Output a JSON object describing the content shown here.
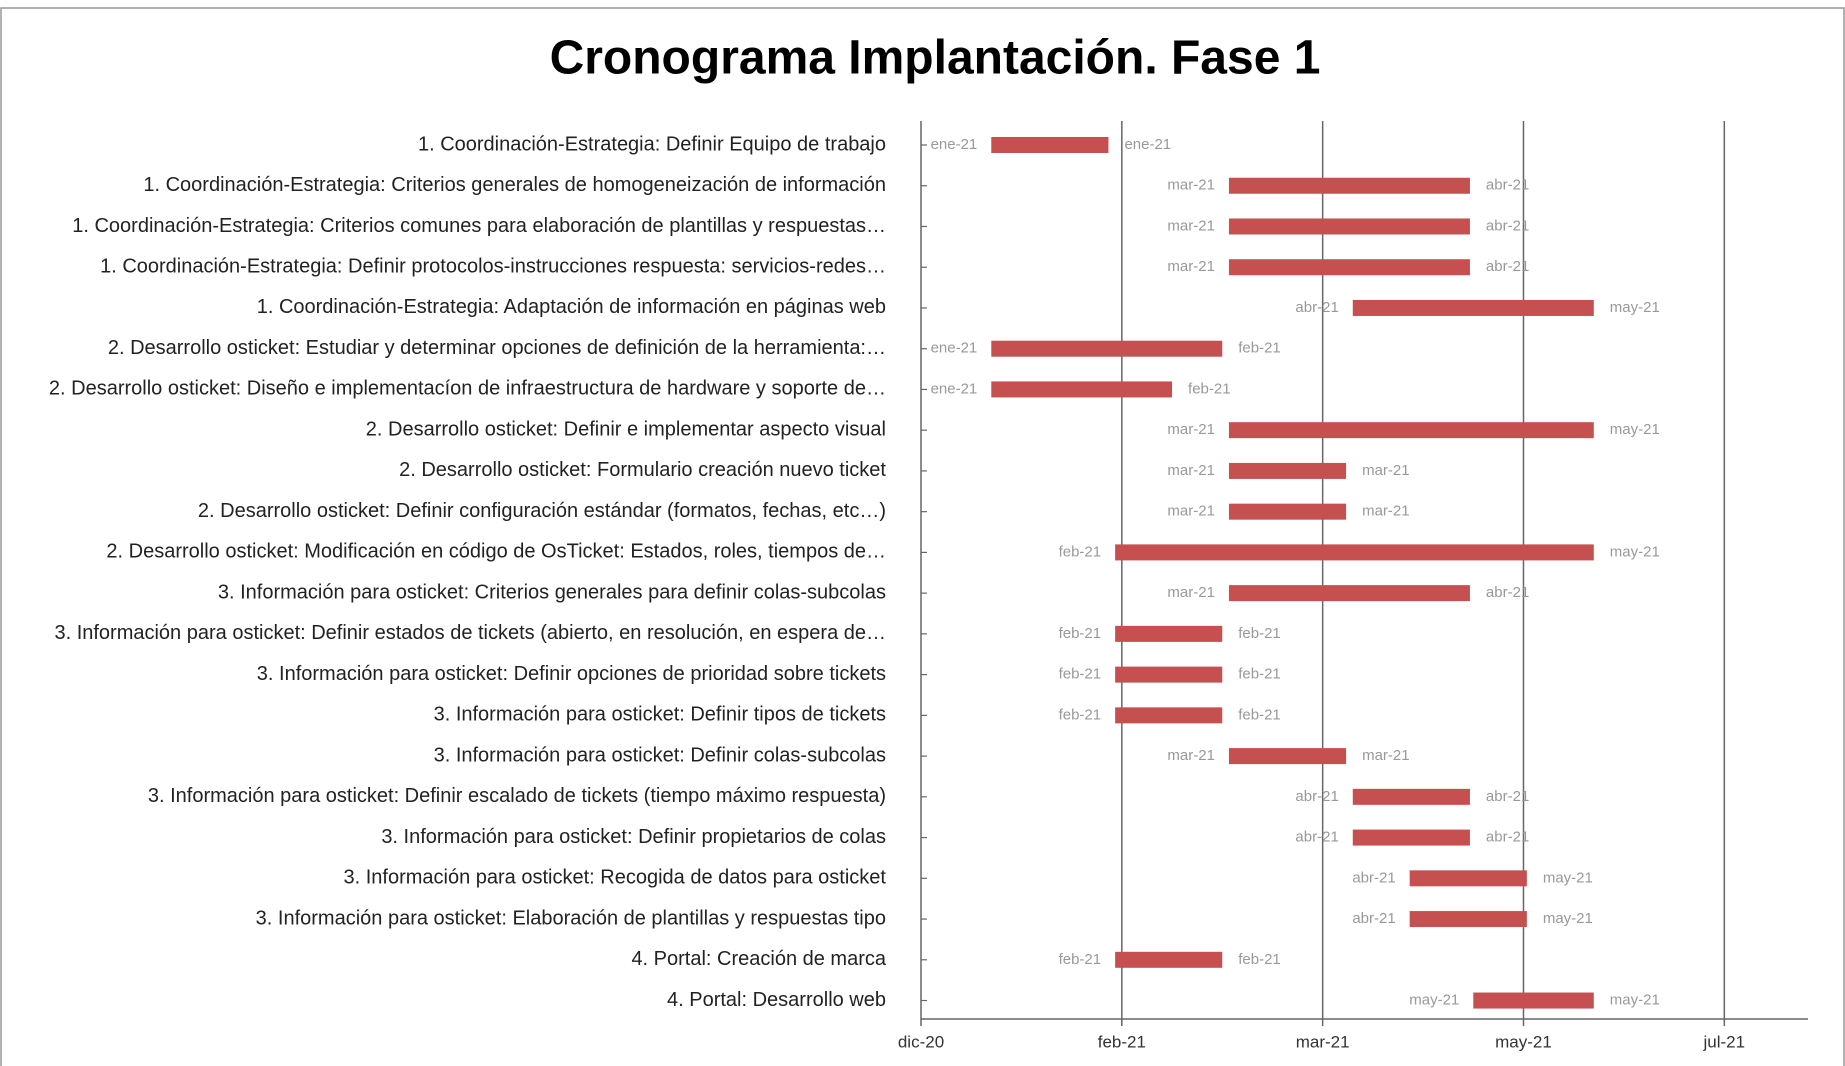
{
  "chart_data": {
    "type": "gantt",
    "title": "Cronograma Implantación. Fase 1",
    "categories": [
      "1. Coordinación-Estrategia: Definir Equipo de trabajo",
      "1. Coordinación-Estrategia: Criterios generales de homogeneización de información",
      "1. Coordinación-Estrategia: Criterios comunes para elaboración de plantillas y respuestas…",
      "1. Coordinación-Estrategia: Definir protocolos-instrucciones respuesta: servicios-redes…",
      "1. Coordinación-Estrategia: Adaptación de información en páginas web",
      "2. Desarrollo osticket: Estudiar y determinar opciones de definición de la herramienta:…",
      "2. Desarrollo osticket: Diseño e implementacíon de infraestructura de hardware y soporte de…",
      "2. Desarrollo osticket: Definir e implementar aspecto visual",
      "2. Desarrollo osticket: Formulario creación nuevo ticket",
      "2. Desarrollo osticket: Definir configuración estándar (formatos, fechas, etc…)",
      "2. Desarrollo osticket: Modificación en código de OsTicket: Estados, roles, tiempos de…",
      "3. Información para osticket: Criterios generales para definir colas-subcolas",
      "3. Información para osticket: Definir estados de tickets (abierto, en resolución, en espera de…",
      "3. Información para osticket: Definir opciones de prioridad sobre tickets",
      "3. Información para osticket: Definir tipos de tickets",
      "3. Información para osticket: Definir colas-subcolas",
      "3. Información para osticket: Definir escalado de tickets (tiempo máximo respuesta)",
      "3. Información para osticket: Definir propietarios de colas",
      "3. Información para osticket: Recogida de datos para osticket",
      "3. Información para osticket: Elaboración de plantillas y respuestas tipo",
      "4. Portal: Creación de marca",
      "4. Portal: Desarrollo web"
    ],
    "start": [
      21,
      92,
      92,
      92,
      129,
      21,
      21,
      92,
      92,
      92,
      58,
      92,
      58,
      58,
      58,
      92,
      129,
      129,
      146,
      146,
      58,
      165
    ],
    "end": [
      56,
      164,
      164,
      164,
      201,
      90,
      75,
      201,
      127,
      127,
      201,
      164,
      90,
      90,
      90,
      127,
      164,
      164,
      181,
      181,
      90,
      201
    ],
    "start_labels": [
      "ene-21",
      "mar-21",
      "mar-21",
      "mar-21",
      "abr-21",
      "ene-21",
      "ene-21",
      "mar-21",
      "mar-21",
      "mar-21",
      "feb-21",
      "mar-21",
      "feb-21",
      "feb-21",
      "feb-21",
      "mar-21",
      "abr-21",
      "abr-21",
      "abr-21",
      "abr-21",
      "feb-21",
      "may-21"
    ],
    "end_labels": [
      "ene-21",
      "abr-21",
      "abr-21",
      "abr-21",
      "may-21",
      "feb-21",
      "feb-21",
      "may-21",
      "mar-21",
      "mar-21",
      "may-21",
      "abr-21",
      "feb-21",
      "feb-21",
      "feb-21",
      "mar-21",
      "abr-21",
      "abr-21",
      "may-21",
      "may-21",
      "feb-21",
      "may-21"
    ],
    "color": "#c5504f",
    "xlim": [
      0,
      265
    ],
    "xticks": [
      {
        "value": 0,
        "label": "dic-20"
      },
      {
        "value": 60,
        "label": "feb-21"
      },
      {
        "value": 120,
        "label": "mar-21"
      },
      {
        "value": 180,
        "label": "may-21"
      },
      {
        "value": 240,
        "label": "jul-21"
      }
    ],
    "grid": true
  }
}
